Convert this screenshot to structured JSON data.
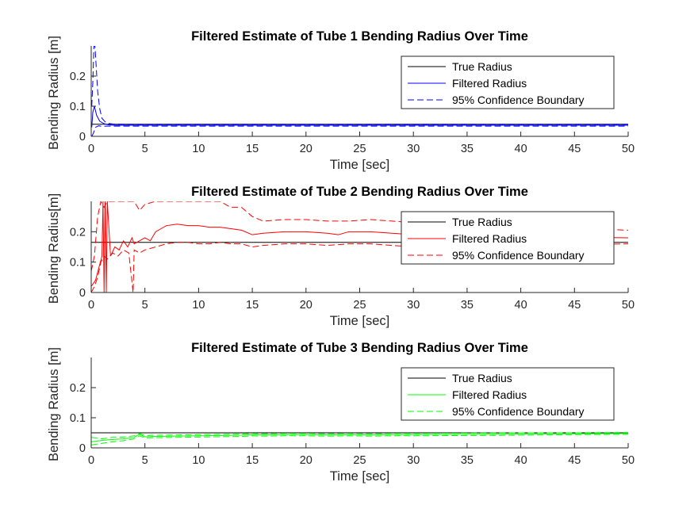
{
  "chart_data": [
    {
      "type": "line",
      "title": "Filtered Estimate of Tube 1 Bending Radius Over Time",
      "xlabel": "Time [sec]",
      "ylabel": "Bending Radius [m]",
      "xlim": [
        0,
        50
      ],
      "ylim": [
        0,
        0.3
      ],
      "xticks": [
        "0",
        "5",
        "10",
        "15",
        "20",
        "25",
        "30",
        "35",
        "40",
        "45",
        "50"
      ],
      "yticks": [
        "0",
        "0.1",
        "0.2"
      ],
      "grid": false,
      "legend_position": "top-right",
      "legend": [
        "True Radius",
        "Filtered Radius",
        "95% Confidence Boundary"
      ],
      "colors": {
        "true": "#000000",
        "filtered": "#0000ff",
        "bound": "#0000ff"
      },
      "series": [
        {
          "name": "True Radius",
          "style": "solid",
          "color": "#000000",
          "x": [
            0,
            50
          ],
          "y": [
            0.04,
            0.04
          ]
        },
        {
          "name": "Filtered Radius",
          "style": "solid",
          "color": "#0000ff",
          "x": [
            0.05,
            0.15,
            0.3,
            0.5,
            0.8,
            1.2,
            1.6,
            2,
            3,
            5,
            50
          ],
          "y": [
            0.03,
            0.08,
            0.1,
            0.07,
            0.05,
            0.042,
            0.038,
            0.037,
            0.037,
            0.037,
            0.037
          ]
        },
        {
          "name": "95% Confidence Boundary",
          "style": "dashed",
          "color": "#0000ff",
          "x": [
            0.05,
            0.15,
            0.25,
            0.35,
            0.45,
            0.6,
            0.8,
            1.0,
            1.3,
            1.6,
            2,
            3,
            50
          ],
          "y": [
            0.1,
            0.18,
            0.3,
            0.3,
            0.24,
            0.15,
            0.09,
            0.06,
            0.048,
            0.043,
            0.041,
            0.04,
            0.04
          ]
        },
        {
          "name": "",
          "style": "dashed",
          "color": "#0000ff",
          "x": [
            0.05,
            0.2,
            0.4,
            0.7,
            1.0,
            1.5,
            2,
            3,
            50
          ],
          "y": [
            0.0,
            0.01,
            0.03,
            0.035,
            0.033,
            0.034,
            0.034,
            0.034,
            0.034
          ]
        }
      ]
    },
    {
      "type": "line",
      "title": "Filtered Estimate of Tube 2 Bending Radius Over Time",
      "xlabel": "Time [sec]",
      "ylabel": "Bending Radius[m]",
      "xlim": [
        0,
        50
      ],
      "ylim": [
        0,
        0.3
      ],
      "xticks": [
        "0",
        "5",
        "10",
        "15",
        "20",
        "25",
        "30",
        "35",
        "40",
        "45",
        "50"
      ],
      "yticks": [
        "0",
        "0.1",
        "0.2"
      ],
      "grid": false,
      "legend_position": "top-right",
      "legend": [
        "True Radius",
        "Filtered Radius",
        "95% Confidence Boundary"
      ],
      "colors": {
        "true": "#000000",
        "filtered": "#ff0000",
        "bound": "#ff0000"
      },
      "series": [
        {
          "name": "True Radius",
          "style": "solid",
          "color": "#000000",
          "x": [
            0,
            50
          ],
          "y": [
            0.165,
            0.165
          ]
        },
        {
          "name": "Filtered Radius",
          "style": "solid",
          "color": "#ff0000",
          "x": [
            0,
            0.4,
            0.7,
            1.0,
            1.1,
            1.2,
            1.3,
            1.4,
            1.5,
            1.8,
            2.2,
            2.6,
            3.0,
            3.4,
            3.8,
            4.0,
            4.5,
            5,
            5.5,
            6,
            6.5,
            7,
            8,
            9,
            10,
            11,
            12,
            13,
            14,
            15,
            16,
            18,
            20,
            22,
            23,
            24,
            26,
            28,
            30,
            50
          ],
          "y": [
            0.02,
            0.04,
            0.08,
            0.12,
            0.3,
            0.0,
            0.3,
            0.0,
            0.3,
            0.12,
            0.15,
            0.14,
            0.17,
            0.15,
            0.18,
            0.16,
            0.17,
            0.18,
            0.17,
            0.2,
            0.21,
            0.22,
            0.225,
            0.22,
            0.22,
            0.215,
            0.215,
            0.21,
            0.205,
            0.19,
            0.195,
            0.2,
            0.2,
            0.195,
            0.19,
            0.2,
            0.2,
            0.195,
            0.19,
            0.18
          ]
        },
        {
          "name": "95% Confidence Boundary",
          "style": "dashed",
          "color": "#ff0000",
          "x": [
            0,
            0.3,
            0.6,
            0.9,
            1.2,
            1.5,
            2,
            2.5,
            3,
            3.5,
            3.9,
            4.0,
            4.5,
            5,
            6,
            7,
            8,
            9,
            10,
            11,
            12,
            13,
            14,
            15,
            16,
            18,
            20,
            22,
            24,
            26,
            28,
            30,
            50
          ],
          "y": [
            0.07,
            0.12,
            0.25,
            0.3,
            0.28,
            0.3,
            0.3,
            0.3,
            0.3,
            0.3,
            0.3,
            0.3,
            0.27,
            0.29,
            0.3,
            0.3,
            0.3,
            0.3,
            0.3,
            0.3,
            0.3,
            0.28,
            0.28,
            0.25,
            0.235,
            0.24,
            0.24,
            0.235,
            0.235,
            0.24,
            0.235,
            0.23,
            0.205
          ]
        },
        {
          "name": "",
          "style": "dashed",
          "color": "#ff0000",
          "x": [
            0,
            0.3,
            0.6,
            0.9,
            1.2,
            1.5,
            2,
            2.5,
            3,
            3.5,
            3.9,
            4.0,
            4.5,
            5,
            6,
            7,
            8,
            9,
            10,
            11,
            12,
            13,
            14,
            15,
            16,
            18,
            20,
            22,
            24,
            26,
            28,
            30,
            50
          ],
          "y": [
            0.0,
            0.02,
            0.05,
            0.1,
            0.12,
            0.11,
            0.13,
            0.12,
            0.14,
            0.13,
            0.0,
            0.14,
            0.13,
            0.14,
            0.15,
            0.16,
            0.165,
            0.165,
            0.16,
            0.16,
            0.165,
            0.16,
            0.16,
            0.15,
            0.155,
            0.16,
            0.16,
            0.155,
            0.16,
            0.16,
            0.155,
            0.15,
            0.16
          ]
        }
      ]
    },
    {
      "type": "line",
      "title": "Filtered Estimate of Tube 3 Bending Radius Over Time",
      "xlabel": "Time [sec]",
      "ylabel": "Bending Radius [m]",
      "xlim": [
        0,
        50
      ],
      "ylim": [
        0,
        0.3
      ],
      "xticks": [
        "0",
        "5",
        "10",
        "15",
        "20",
        "25",
        "30",
        "35",
        "40",
        "45",
        "50"
      ],
      "yticks": [
        "0",
        "0.1",
        "0.2"
      ],
      "grid": false,
      "legend_position": "top-right",
      "legend": [
        "True Radius",
        "Filtered Radius",
        "95% Confidence Boundary"
      ],
      "colors": {
        "true": "#000000",
        "filtered": "#00ff00",
        "bound": "#00ff00"
      },
      "series": [
        {
          "name": "True Radius",
          "style": "solid",
          "color": "#000000",
          "x": [
            0,
            50
          ],
          "y": [
            0.05,
            0.05
          ]
        },
        {
          "name": "Filtered Radius",
          "style": "solid",
          "color": "#00ff00",
          "x": [
            0,
            1,
            2,
            3,
            4,
            4.5,
            5,
            6,
            8,
            10,
            12,
            14,
            15,
            16,
            18,
            20,
            22,
            24,
            26,
            28,
            30,
            35,
            40,
            45,
            50
          ],
          "y": [
            0.02,
            0.025,
            0.028,
            0.03,
            0.035,
            0.045,
            0.037,
            0.038,
            0.039,
            0.04,
            0.041,
            0.042,
            0.044,
            0.043,
            0.044,
            0.044,
            0.043,
            0.044,
            0.043,
            0.044,
            0.044,
            0.045,
            0.046,
            0.047,
            0.048
          ]
        },
        {
          "name": "95% Confidence Boundary",
          "style": "dashed",
          "color": "#00ff00",
          "x": [
            0,
            1,
            2,
            3,
            4,
            4.5,
            5,
            6,
            8,
            10,
            12,
            14,
            15,
            16,
            18,
            20,
            22,
            24,
            26,
            28,
            30,
            35,
            40,
            45,
            50
          ],
          "y": [
            0.035,
            0.03,
            0.035,
            0.036,
            0.04,
            0.048,
            0.041,
            0.042,
            0.043,
            0.044,
            0.045,
            0.046,
            0.048,
            0.047,
            0.048,
            0.048,
            0.047,
            0.048,
            0.047,
            0.048,
            0.048,
            0.049,
            0.05,
            0.05,
            0.051
          ]
        },
        {
          "name": "",
          "style": "dashed",
          "color": "#00ff00",
          "x": [
            0,
            1,
            2,
            3,
            4,
            4.5,
            5,
            6,
            8,
            10,
            12,
            14,
            15,
            16,
            18,
            20,
            22,
            24,
            26,
            28,
            30,
            35,
            40,
            45,
            50
          ],
          "y": [
            0.01,
            0.015,
            0.02,
            0.024,
            0.03,
            0.04,
            0.033,
            0.034,
            0.035,
            0.036,
            0.037,
            0.038,
            0.04,
            0.039,
            0.04,
            0.04,
            0.039,
            0.04,
            0.039,
            0.04,
            0.04,
            0.041,
            0.042,
            0.044,
            0.045
          ]
        }
      ]
    }
  ]
}
